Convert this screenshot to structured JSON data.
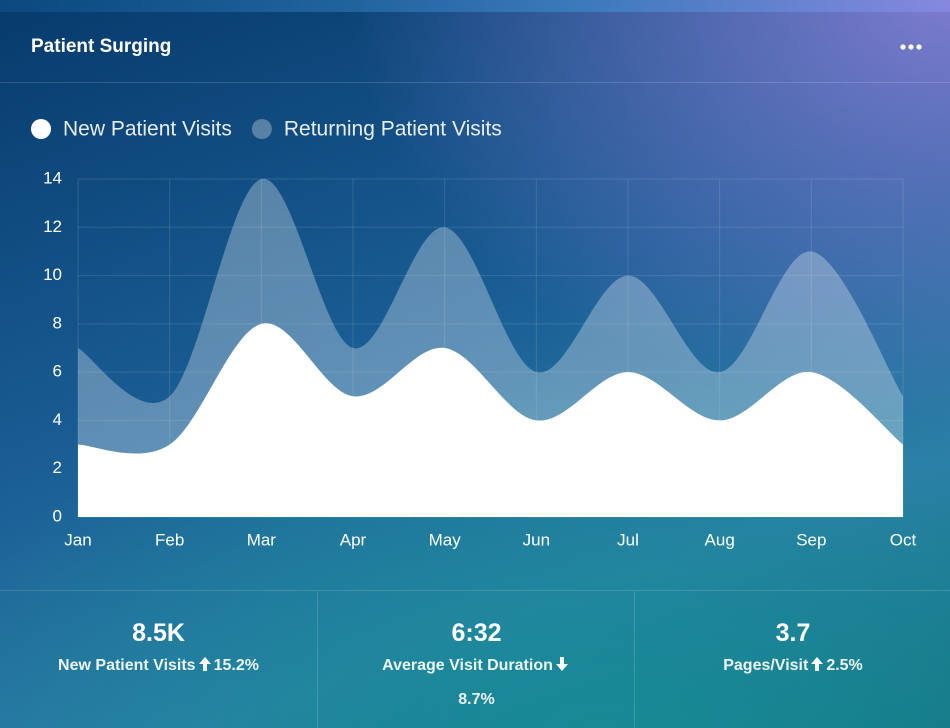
{
  "header": {
    "title": "Patient Surging"
  },
  "chart_data": {
    "type": "area",
    "categories": [
      "Jan",
      "Feb",
      "Mar",
      "Apr",
      "May",
      "Jun",
      "Jul",
      "Aug",
      "Sep",
      "Oct"
    ],
    "series": [
      {
        "name": "New Patient Visits",
        "color": "#ffffff",
        "values": [
          3,
          3,
          8,
          5,
          7,
          4,
          6,
          4,
          6,
          3
        ]
      },
      {
        "name": "Returning Patient Visits",
        "color": "rgba(255,255,255,0.3)",
        "values": [
          7,
          5,
          14,
          7,
          12,
          6,
          10,
          6,
          11,
          5
        ]
      }
    ],
    "ylim": [
      0,
      14
    ],
    "yticks": [
      0,
      2,
      4,
      6,
      8,
      10,
      12,
      14
    ],
    "grid": true,
    "smooth": true
  },
  "stats": [
    {
      "value": "8.5K",
      "label": "New Patient Visits",
      "change": "15.2%"
    },
    {
      "value": "6:32",
      "label": "Average Visit Duration",
      "change": "8.7%"
    },
    {
      "value": "3.7",
      "label": "Pages/Visit",
      "change": "2.5%"
    }
  ]
}
